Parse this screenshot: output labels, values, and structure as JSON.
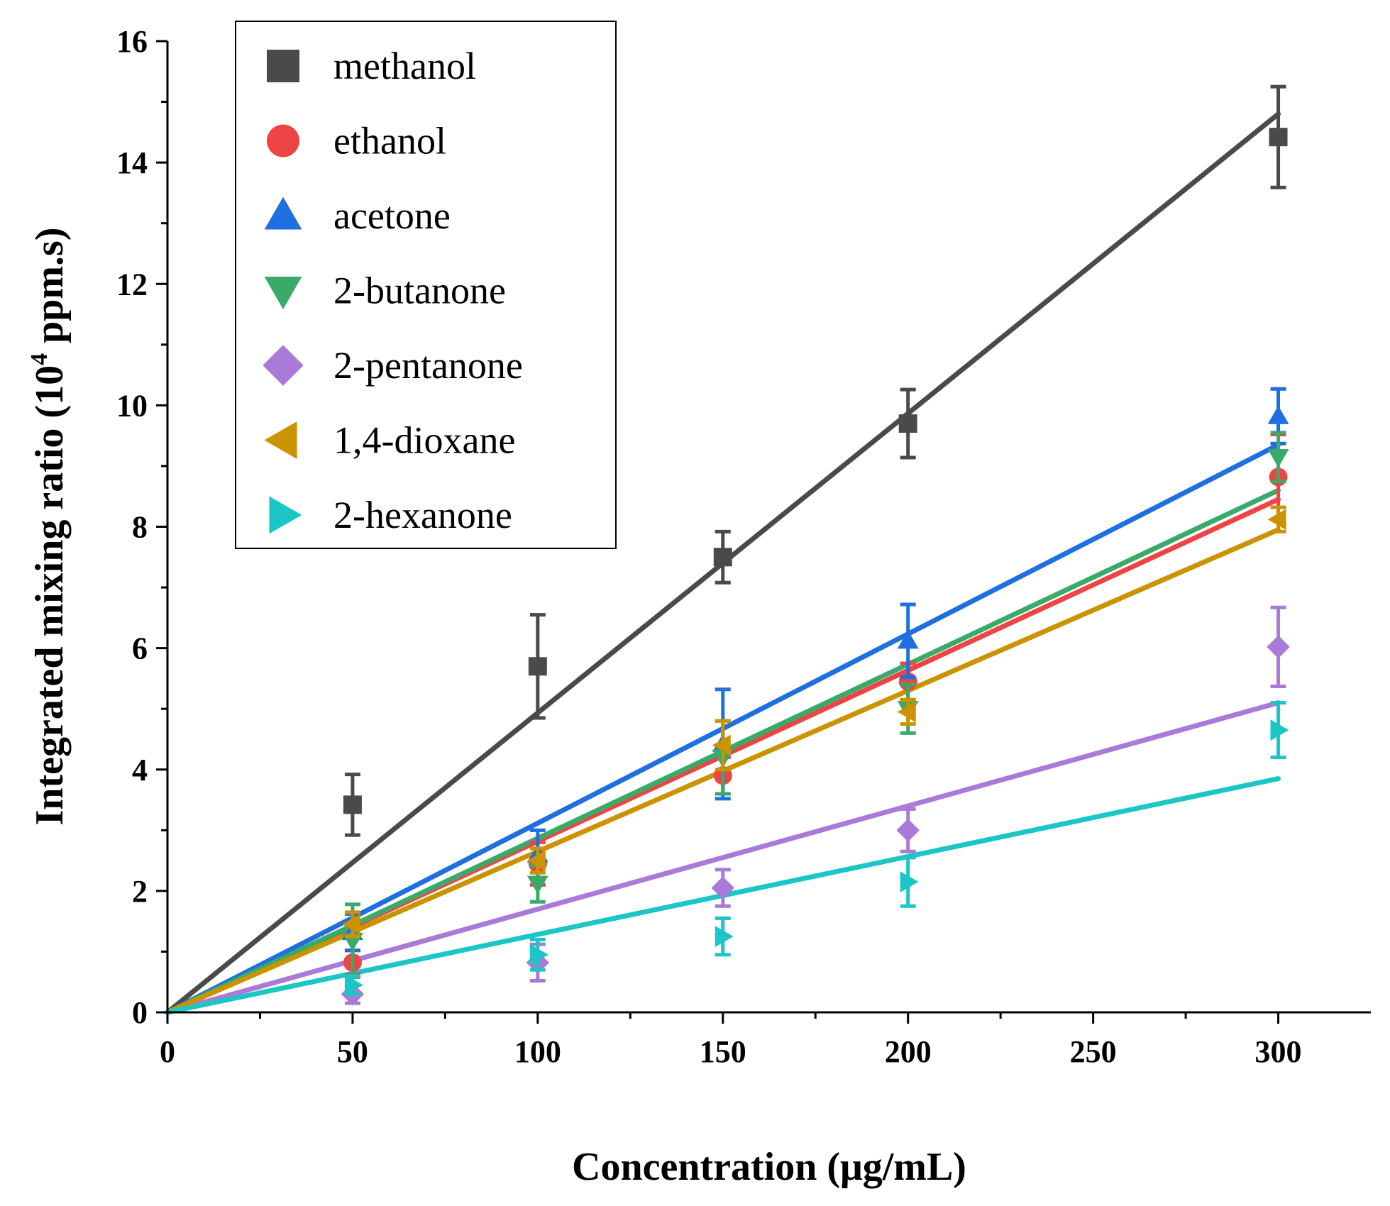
{
  "chart_data": {
    "type": "scatter",
    "title": "",
    "xlabel": "Concentration (μg/mL)",
    "ylabel_main": "Integrated mixing ratio (10",
    "ylabel_sup": "4",
    "ylabel_tail": " ppm.s)",
    "xlim": [
      0,
      325
    ],
    "ylim": [
      0,
      16
    ],
    "xticks": [
      0,
      50,
      100,
      150,
      200,
      250,
      300
    ],
    "yticks": [
      0,
      2,
      4,
      6,
      8,
      10,
      12,
      14,
      16
    ],
    "grid": false,
    "legend_position": "top-left",
    "series": [
      {
        "name": "methanol",
        "color": "#4a4a4a",
        "marker": "square",
        "x": [
          50,
          100,
          150,
          200,
          300
        ],
        "y": [
          3.42,
          5.7,
          7.5,
          9.7,
          14.42
        ],
        "err": [
          0.5,
          0.85,
          0.42,
          0.56,
          0.83
        ],
        "fit": [
          [
            0,
            0
          ],
          [
            300,
            14.8
          ]
        ]
      },
      {
        "name": "ethanol",
        "color": "#ee4444",
        "marker": "circle",
        "x": [
          50,
          100,
          150,
          200,
          300
        ],
        "y": [
          0.82,
          2.45,
          3.9,
          5.45,
          8.82
        ],
        "err": [
          0.2,
          0.35,
          0.3,
          0.3,
          0.7
        ],
        "fit": [
          [
            0,
            0
          ],
          [
            300,
            8.45
          ]
        ]
      },
      {
        "name": "acetone",
        "color": "#1e6fe0",
        "marker": "triangle-up",
        "x": [
          50,
          100,
          150,
          200,
          300
        ],
        "y": [
          1.32,
          2.6,
          4.42,
          6.12,
          9.82
        ],
        "err": [
          0.3,
          0.4,
          0.9,
          0.6,
          0.45
        ],
        "fit": [
          [
            0,
            0
          ],
          [
            300,
            9.35
          ]
        ]
      },
      {
        "name": "2-butanone",
        "color": "#3aaa6a",
        "marker": "triangle-down",
        "x": [
          50,
          100,
          150,
          200,
          300
        ],
        "y": [
          1.18,
          2.12,
          4.2,
          5.0,
          9.15
        ],
        "err": [
          0.6,
          0.3,
          0.6,
          0.4,
          0.4
        ],
        "fit": [
          [
            0,
            0
          ],
          [
            300,
            8.6
          ]
        ]
      },
      {
        "name": "2-pentanone",
        "color": "#a97ad8",
        "marker": "diamond",
        "x": [
          50,
          100,
          150,
          200,
          300
        ],
        "y": [
          0.3,
          0.82,
          2.05,
          3.0,
          6.02
        ],
        "err": [
          0.15,
          0.3,
          0.3,
          0.35,
          0.65
        ],
        "fit": [
          [
            0,
            0
          ],
          [
            300,
            5.1
          ]
        ]
      },
      {
        "name": "1,4-dioxane",
        "color": "#cc9300",
        "marker": "triangle-left",
        "x": [
          50,
          100,
          150,
          200,
          300
        ],
        "y": [
          1.45,
          2.5,
          4.4,
          4.95,
          8.12
        ],
        "err": [
          0.2,
          0.2,
          0.4,
          0.2,
          0.2
        ],
        "fit": [
          [
            0,
            0
          ],
          [
            300,
            7.95
          ]
        ]
      },
      {
        "name": "2-hexanone",
        "color": "#1cc6c6",
        "marker": "triangle-right",
        "x": [
          50,
          100,
          150,
          200,
          300
        ],
        "y": [
          0.45,
          0.95,
          1.25,
          2.15,
          4.65
        ],
        "err": [
          0.15,
          0.25,
          0.3,
          0.4,
          0.45
        ],
        "fit": [
          [
            0,
            0
          ],
          [
            300,
            3.85
          ]
        ]
      }
    ]
  }
}
